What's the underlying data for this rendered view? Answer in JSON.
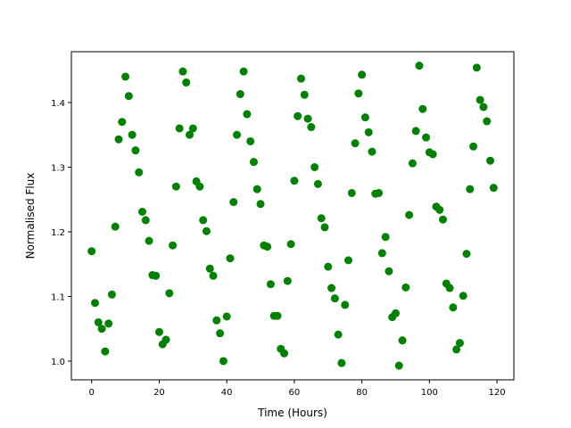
{
  "chart_data": {
    "type": "scatter",
    "x_label": "Time (Hours)",
    "y_label": "Normalised Flux",
    "color": "#008000",
    "x": [
      0,
      1,
      2,
      3,
      4,
      5,
      6,
      7,
      8,
      9,
      10,
      11,
      12,
      13,
      14,
      15,
      16,
      17,
      18,
      19,
      20,
      21,
      22,
      23,
      24,
      25,
      26,
      27,
      28,
      29,
      30,
      31,
      32,
      33,
      34,
      35,
      36,
      37,
      38,
      39,
      40,
      41,
      42,
      43,
      44,
      45,
      46,
      47,
      48,
      49,
      50,
      51,
      52,
      53,
      54,
      55,
      56,
      57,
      58,
      59,
      60,
      61,
      62,
      63,
      64,
      65,
      66,
      67,
      68,
      69,
      70,
      71,
      72,
      73,
      74,
      75,
      76,
      77,
      78,
      79,
      80,
      81,
      82,
      83,
      84,
      85,
      86,
      87,
      88,
      89,
      90,
      91,
      92,
      93,
      94,
      95,
      96,
      97,
      98,
      99,
      100,
      101,
      102,
      103,
      104,
      105,
      106,
      107,
      108,
      109,
      110,
      111,
      112,
      113,
      114,
      115,
      116,
      117,
      118,
      119
    ],
    "values": [
      1.17,
      1.09,
      1.06,
      1.05,
      1.015,
      1.058,
      1.103,
      1.208,
      1.343,
      1.37,
      1.44,
      1.41,
      1.35,
      1.326,
      1.292,
      1.231,
      1.218,
      1.186,
      1.133,
      1.132,
      1.045,
      1.026,
      1.033,
      1.105,
      1.179,
      1.27,
      1.36,
      1.448,
      1.431,
      1.35,
      1.36,
      1.278,
      1.27,
      1.218,
      1.201,
      1.143,
      1.132,
      1.063,
      1.043,
      1.0,
      1.069,
      1.159,
      1.246,
      1.35,
      1.413,
      1.448,
      1.382,
      1.34,
      1.308,
      1.266,
      1.243,
      1.179,
      1.177,
      1.119,
      1.07,
      1.07,
      1.019,
      1.012,
      1.124,
      1.181,
      1.279,
      1.379,
      1.437,
      1.412,
      1.375,
      1.362,
      1.3,
      1.274,
      1.221,
      1.207,
      1.146,
      1.113,
      1.097,
      1.041,
      0.997,
      1.087,
      1.156,
      1.26,
      1.337,
      1.414,
      1.443,
      1.377,
      1.354,
      1.324,
      1.259,
      1.26,
      1.167,
      1.192,
      1.139,
      1.068,
      1.074,
      0.993,
      1.032,
      1.114,
      1.226,
      1.306,
      1.356,
      1.457,
      1.39,
      1.346,
      1.323,
      1.32,
      1.239,
      1.234,
      1.219,
      1.12,
      1.113,
      1.083,
      1.018,
      1.028,
      1.101,
      1.166,
      1.266,
      1.332,
      1.454,
      1.404,
      1.393,
      1.371,
      1.31,
      1.268
    ],
    "xlim": [
      -6,
      125
    ],
    "ylim": [
      0.971,
      1.4786
    ],
    "xticks": [
      0,
      20,
      40,
      60,
      80,
      100,
      120
    ],
    "yticks": [
      {
        "value": 1,
        "label": "1.0"
      },
      1.1,
      1.2,
      1.3,
      1.4
    ]
  }
}
